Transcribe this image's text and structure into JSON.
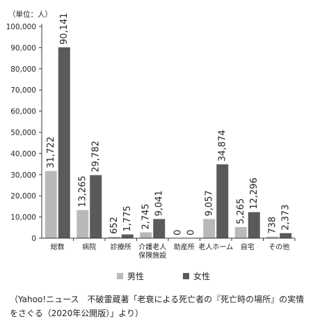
{
  "chart_data": {
    "type": "bar",
    "unit_label": "（単位：人）",
    "categories": [
      "総数",
      "病院",
      "診療所",
      "介護老人\n保険施設",
      "助産所",
      "老人ホーム",
      "自宅",
      "その他"
    ],
    "series": [
      {
        "name": "男性",
        "color": "#b9b9b9",
        "values": [
          31722,
          13265,
          652,
          2745,
          0,
          9057,
          5265,
          738
        ],
        "labels": [
          "31,722",
          "13,265",
          "652",
          "2,745",
          "0",
          "9,057",
          "5,265",
          "738"
        ]
      },
      {
        "name": "女性",
        "color": "#5a5a5a",
        "values": [
          90141,
          29782,
          1775,
          9041,
          0,
          34874,
          12296,
          2373
        ],
        "labels": [
          "90,141",
          "29,782",
          "1,775",
          "9,041",
          "0",
          "34,874",
          "12,296",
          "2,373"
        ]
      }
    ],
    "ylim": [
      0,
      100000
    ],
    "yticks": [
      0,
      10000,
      20000,
      30000,
      40000,
      50000,
      60000,
      70000,
      80000,
      90000,
      100000
    ],
    "ytick_labels": [
      "0",
      "10,000",
      "20,000",
      "30,000",
      "40,000",
      "50,000",
      "60,000",
      "70,000",
      "80,000",
      "90,000",
      "100,000"
    ],
    "grid": false,
    "legend_position": "bottom"
  },
  "caption": "（Yahoo!ニュース　不破雷蔵著「老衰による死亡者の『死亡時の場所』の実情をさぐる（2020年公開版）」より）"
}
